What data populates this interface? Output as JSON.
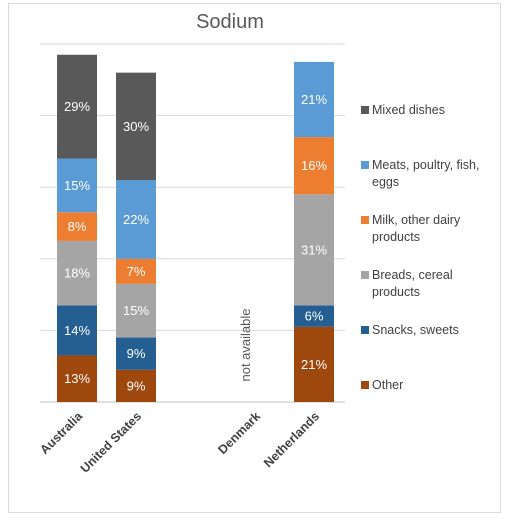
{
  "chart_data": {
    "type": "bar",
    "stacked": true,
    "title": "Sodium",
    "xlabel": "",
    "ylabel": "",
    "ylim": [
      0,
      100
    ],
    "grid": true,
    "legend_position": "right",
    "categories": [
      "Australia",
      "United States",
      "Denmark",
      "Netherlands"
    ],
    "series": [
      {
        "name": "Other",
        "color": "#9e480e",
        "values": [
          13,
          9,
          null,
          21
        ],
        "labels": [
          "13%",
          "9%",
          "",
          "21%"
        ]
      },
      {
        "name": "Snacks,  sweets",
        "color": "#255e91",
        "values": [
          14,
          9,
          null,
          6
        ],
        "labels": [
          "14%",
          "9%",
          "",
          "6%"
        ]
      },
      {
        "name": "Breads, cereal products",
        "color": "#a5a5a5",
        "values": [
          18,
          15,
          null,
          31
        ],
        "labels": [
          "18%",
          "15%",
          "",
          "31%"
        ]
      },
      {
        "name": "Milk, other dairy products",
        "color": "#ed7d31",
        "values": [
          8,
          7,
          null,
          16
        ],
        "labels": [
          "8%",
          "7%",
          "",
          "16%"
        ]
      },
      {
        "name": "Meats, poultry, fish, eggs",
        "color": "#5b9bd5",
        "values": [
          15,
          22,
          null,
          21
        ],
        "labels": [
          "15%",
          "22%",
          "",
          "21%"
        ]
      },
      {
        "name": "Mixed dishes",
        "color": "#595959",
        "values": [
          29,
          30,
          null,
          0
        ],
        "labels": [
          "29%",
          "30%",
          "",
          ""
        ]
      }
    ],
    "legend": [
      {
        "lines": [
          "Mixed dishes"
        ],
        "color": "#595959"
      },
      {
        "lines": [
          "Meats, poultry, fish,",
          "eggs"
        ],
        "color": "#5b9bd5"
      },
      {
        "lines": [
          "Milk, other dairy",
          "products"
        ],
        "color": "#ed7d31"
      },
      {
        "lines": [
          "Breads, cereal",
          "products"
        ],
        "color": "#a5a5a5"
      },
      {
        "lines": [
          "Snacks,  sweets"
        ],
        "color": "#255e91"
      },
      {
        "lines": [
          "Other"
        ],
        "color": "#9e480e"
      }
    ],
    "annotations": [
      {
        "category": "Denmark",
        "text": "not available"
      }
    ]
  }
}
